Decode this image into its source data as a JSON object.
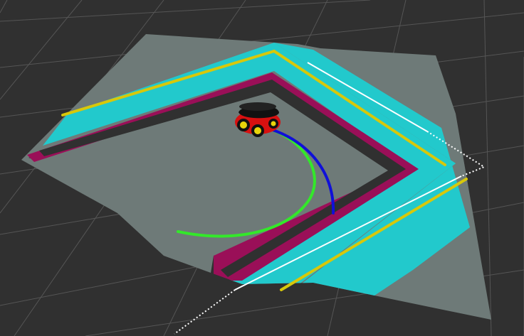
{
  "scene": {
    "kind": "3d-robot-navigation-visualization",
    "background_color": "#303030",
    "grid_color": "#5a5a5a",
    "map": {
      "free_space_color": "#6e7a78",
      "inflation_outer_color": "#22c9cc",
      "inflation_inner_color": "#a0115a",
      "lethal_line_color": "#d8c80a"
    },
    "paths": {
      "global_plan_color": "#33e82a",
      "local_plan_color": "#1010d8"
    },
    "laser_scan": {
      "color": "#ffffff"
    },
    "robot": {
      "icon": "robot-icon",
      "body_color": "#d81010",
      "cover_color": "#111111",
      "wheel_color": "#e8d40a"
    }
  }
}
